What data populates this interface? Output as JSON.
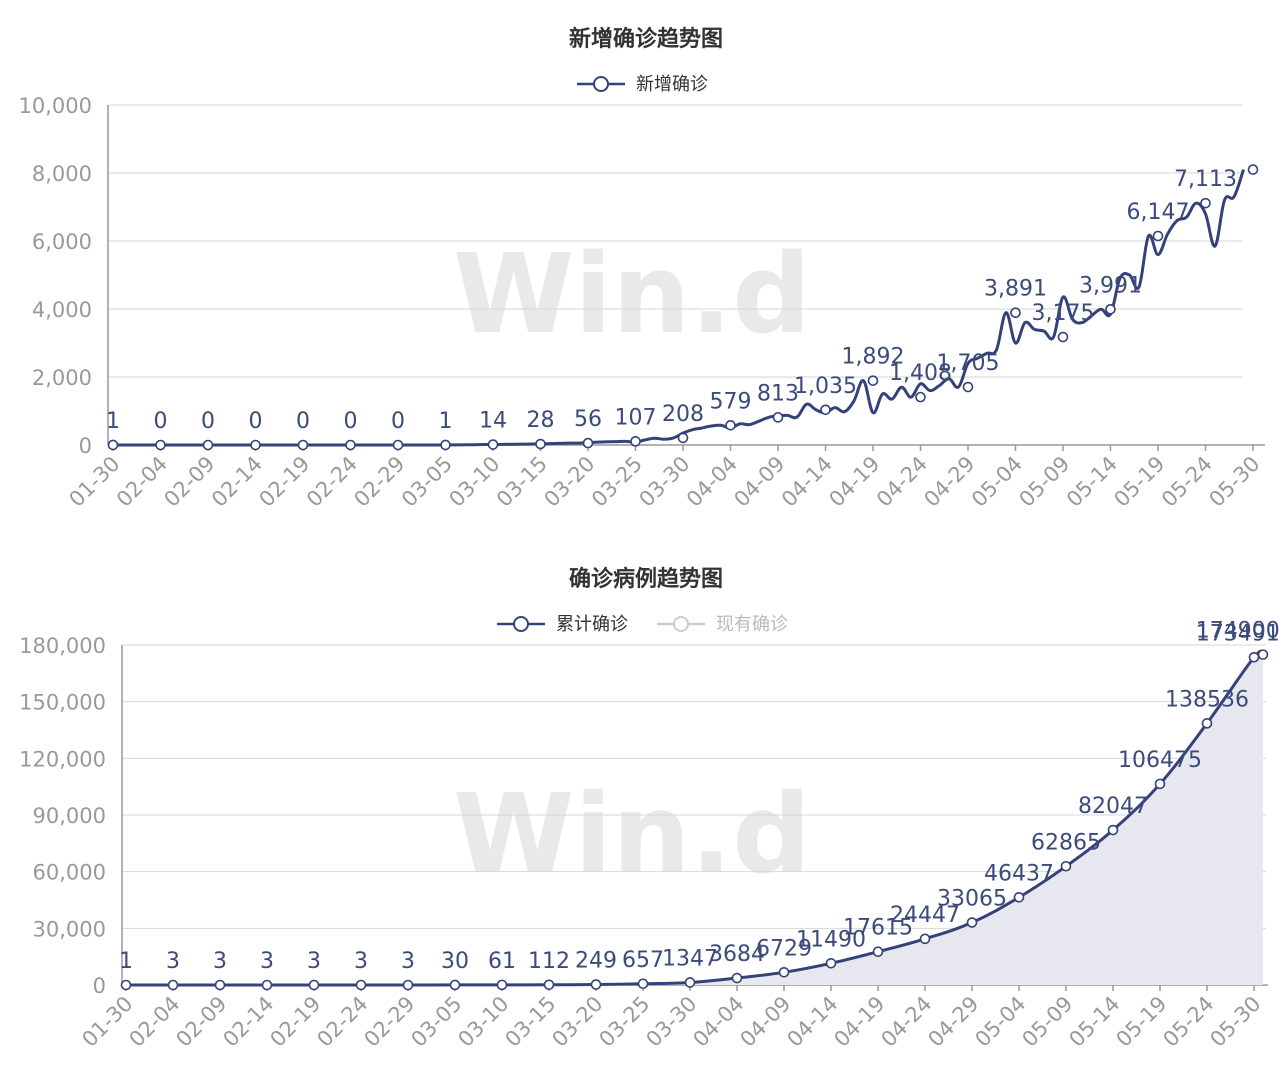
{
  "chart_data": [
    {
      "type": "line",
      "title": "新增确诊趋势图",
      "watermark": "Win.d",
      "legend": {
        "placement": "top-center",
        "items": [
          {
            "name": "新增确诊",
            "active": true
          }
        ]
      },
      "x_tick_labels": [
        "01-30",
        "02-04",
        "02-09",
        "02-14",
        "02-19",
        "02-24",
        "02-29",
        "03-05",
        "03-10",
        "03-15",
        "03-20",
        "03-25",
        "03-30",
        "04-04",
        "04-09",
        "04-14",
        "04-19",
        "04-24",
        "04-29",
        "05-04",
        "05-09",
        "05-14",
        "05-19",
        "05-24",
        "05-30"
      ],
      "y_tick_labels": [
        "0",
        "2,000",
        "4,000",
        "6,000",
        "8,000",
        "10,000"
      ],
      "ylim": [
        0,
        10000
      ],
      "grid": true,
      "smooth": true,
      "color": "#34427a",
      "series": [
        {
          "name": "新增确诊",
          "x": [
            "01-30",
            "02-04",
            "02-09",
            "02-14",
            "02-19",
            "02-24",
            "02-29",
            "03-05",
            "03-10",
            "03-15",
            "03-20",
            "03-25",
            "03-30",
            "04-04",
            "04-09",
            "04-14",
            "04-19",
            "04-24",
            "04-29",
            "05-04",
            "05-09",
            "05-14",
            "05-19",
            "05-24",
            "05-30"
          ],
          "values": [
            1,
            0,
            0,
            0,
            0,
            0,
            0,
            1,
            14,
            28,
            56,
            107,
            208,
            579,
            813,
            1035,
            1892,
            1408,
            1705,
            3891,
            3175,
            3991,
            6147,
            7113,
            8100
          ],
          "labels": [
            "1",
            "0",
            "0",
            "0",
            "0",
            "0",
            "0",
            "1",
            "14",
            "28",
            "56",
            "107",
            "208",
            "579",
            "813",
            "1,035",
            "1,892",
            "1,408",
            "1,705",
            "3,891",
            "3,175",
            "3,991",
            "6,147",
            "7,113",
            ""
          ]
        }
      ],
      "daily_curve": [
        1,
        0,
        0,
        0,
        0,
        0,
        0,
        0,
        0,
        0,
        0,
        0,
        0,
        0,
        0,
        0,
        0,
        0,
        0,
        0,
        0,
        0,
        0,
        0,
        0,
        0,
        0,
        0,
        0,
        0,
        0,
        0,
        0,
        0,
        1,
        2,
        3,
        5,
        9,
        14,
        15,
        18,
        22,
        25,
        28,
        32,
        40,
        48,
        55,
        56,
        70,
        85,
        95,
        100,
        107,
        80,
        150,
        200,
        170,
        208,
        350,
        450,
        500,
        560,
        579,
        500,
        620,
        600,
        700,
        813,
        860,
        870,
        820,
        1200,
        1035,
        950,
        1100,
        980,
        1300,
        1892,
        950,
        1500,
        1350,
        1700,
        1408,
        1800,
        1600,
        1750,
        1950,
        1705,
        2400,
        2550,
        2700,
        2800,
        3891,
        3000,
        3600,
        3400,
        3350,
        3175,
        4350,
        3700,
        3600,
        3800,
        3991,
        3850,
        4900,
        5000,
        4650,
        6147,
        5600,
        6200,
        6600,
        6700,
        7113,
        6800,
        5850,
        7200,
        7300,
        8100
      ]
    },
    {
      "type": "area",
      "title": "确诊病例趋势图",
      "watermark": "Win.d",
      "legend": {
        "placement": "top-center",
        "items": [
          {
            "name": "累计确诊",
            "active": true
          },
          {
            "name": "现有确诊",
            "active": false
          }
        ]
      },
      "x_tick_labels": [
        "01-30",
        "02-04",
        "02-09",
        "02-14",
        "02-19",
        "02-24",
        "02-29",
        "03-05",
        "03-10",
        "03-15",
        "03-20",
        "03-25",
        "03-30",
        "04-04",
        "04-09",
        "04-14",
        "04-19",
        "04-24",
        "04-29",
        "05-04",
        "05-09",
        "05-14",
        "05-19",
        "05-24",
        "05-30"
      ],
      "y_tick_labels": [
        "0",
        "30,000",
        "60,000",
        "90,000",
        "120,000",
        "150,000",
        "180,000"
      ],
      "ylim": [
        0,
        180000
      ],
      "grid": true,
      "color": "#34427a",
      "area_color": "#e6e7ef",
      "series": [
        {
          "name": "累计确诊",
          "x": [
            "01-30",
            "02-04",
            "02-09",
            "02-14",
            "02-19",
            "02-24",
            "02-29",
            "03-05",
            "03-10",
            "03-15",
            "03-20",
            "03-25",
            "03-30",
            "04-04",
            "04-09",
            "04-14",
            "04-19",
            "04-24",
            "04-29",
            "05-04",
            "05-09",
            "05-14",
            "05-19",
            "05-24",
            "05-29",
            "05-30"
          ],
          "values": [
            1,
            3,
            3,
            3,
            3,
            3,
            3,
            30,
            61,
            112,
            249,
            657,
            1347,
            3684,
            6729,
            11490,
            17615,
            24447,
            33065,
            46437,
            62865,
            82047,
            106475,
            138536,
            173491,
            174900
          ],
          "labels": [
            "1",
            "3",
            "3",
            "3",
            "3",
            "3",
            "3",
            "30",
            "61",
            "112",
            "249",
            "657",
            "1347",
            "3684",
            "6729",
            "11490",
            "17615",
            "24447",
            "33065",
            "46437",
            "62865",
            "82047",
            "106475",
            "138536",
            "173491",
            "174900"
          ]
        }
      ]
    }
  ]
}
